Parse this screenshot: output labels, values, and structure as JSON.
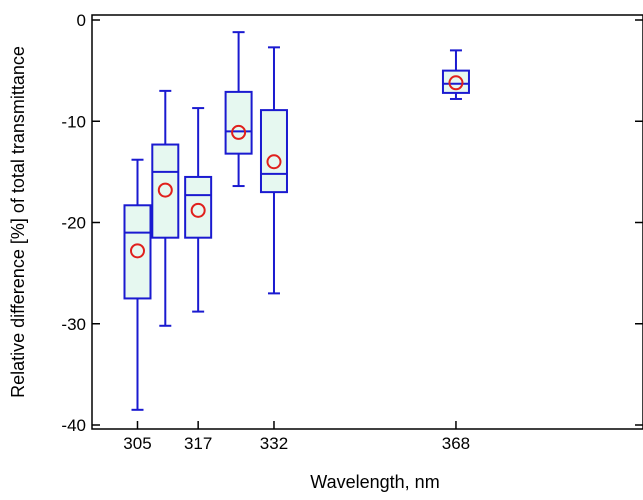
{
  "chart_data": {
    "type": "box",
    "title": "",
    "xlabel": "Wavelength, nm",
    "ylabel": "Relative difference [%] of total transmittance",
    "ylim": [
      -41,
      0.5
    ],
    "yticks": [
      0,
      -10,
      -20,
      -30,
      -40
    ],
    "xticks": [
      305,
      317,
      332,
      368
    ],
    "xlim": [
      296,
      405
    ],
    "grid": false,
    "colors": {
      "box_edge": "#1a1ad0",
      "box_fill": "#e6f8f0",
      "mean_marker": "#e0201c",
      "axis": "#000000"
    },
    "series": [
      {
        "x": 305,
        "whisker_low": -38.5,
        "q1": -27.5,
        "median": -21.0,
        "q3": -18.3,
        "whisker_high": -13.8,
        "mean": -22.8
      },
      {
        "x": 310.5,
        "whisker_low": -30.2,
        "q1": -21.5,
        "median": -15.0,
        "q3": -12.3,
        "whisker_high": -7.0,
        "mean": -16.8
      },
      {
        "x": 317,
        "whisker_low": -28.8,
        "q1": -21.5,
        "median": -17.3,
        "q3": -15.5,
        "whisker_high": -8.7,
        "mean": -18.8
      },
      {
        "x": 325,
        "whisker_low": -16.4,
        "q1": -13.2,
        "median": -11.0,
        "q3": -7.1,
        "whisker_high": -1.2,
        "mean": -11.1
      },
      {
        "x": 332,
        "whisker_low": -27.0,
        "q1": -17.0,
        "median": -15.2,
        "q3": -8.9,
        "whisker_high": -2.7,
        "mean": -14.0
      },
      {
        "x": 368,
        "whisker_low": -7.8,
        "q1": -7.2,
        "median": -6.3,
        "q3": -5.0,
        "whisker_high": -3.0,
        "mean": -6.2
      }
    ]
  }
}
